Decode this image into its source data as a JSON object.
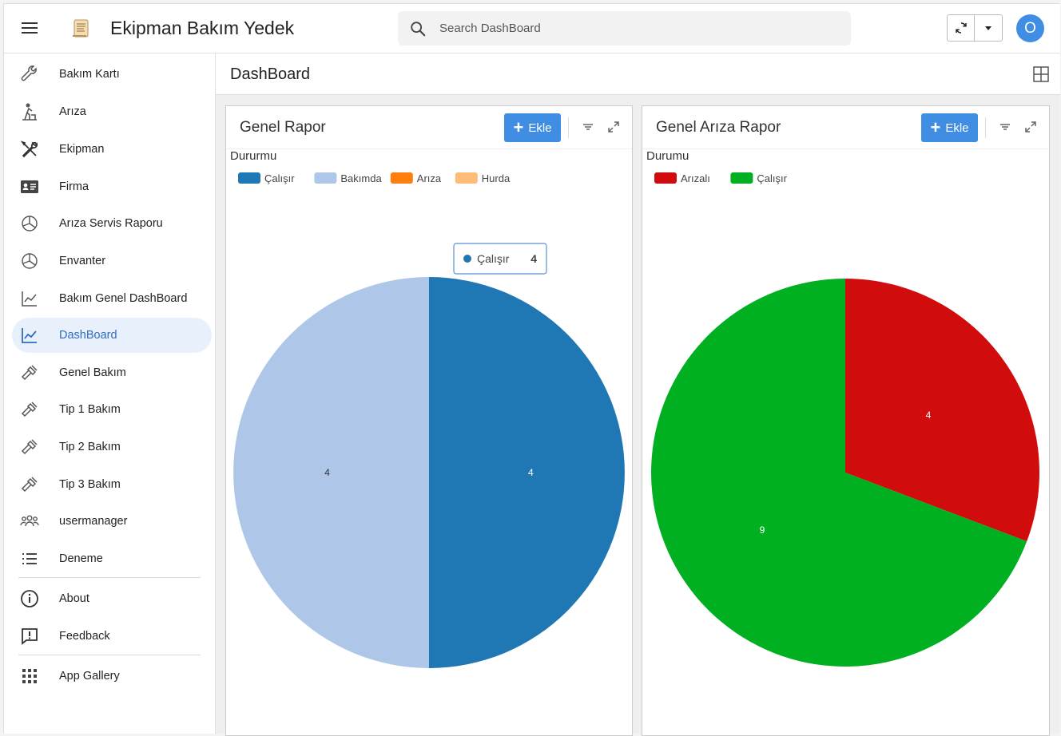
{
  "header": {
    "app_title": "Ekipman Bakım Yedek",
    "search_placeholder": "Search DashBoard",
    "avatar_initial": "O"
  },
  "sidebar": {
    "items": [
      {
        "label": "Bakım Kartı",
        "icon": "wrench-icon"
      },
      {
        "label": "Arıza",
        "icon": "worker-icon"
      },
      {
        "label": "Ekipman",
        "icon": "tools-icon"
      },
      {
        "label": "Firma",
        "icon": "id-card-icon"
      },
      {
        "label": "Arıza Servis Raporu",
        "icon": "pie-chart-icon"
      },
      {
        "label": "Envanter",
        "icon": "pie-chart-icon"
      },
      {
        "label": "Bakım Genel DashBoard",
        "icon": "line-chart-icon"
      },
      {
        "label": "DashBoard",
        "icon": "line-chart-icon",
        "active": true
      },
      {
        "label": "Genel Bakım",
        "icon": "hammer-icon"
      },
      {
        "label": "Tip 1 Bakım",
        "icon": "hammer-icon"
      },
      {
        "label": "Tip 2 Bakım",
        "icon": "hammer-icon"
      },
      {
        "label": "Tip 3 Bakım",
        "icon": "hammer-icon"
      },
      {
        "label": "usermanager",
        "icon": "users-icon"
      },
      {
        "label": "Deneme",
        "icon": "list-icon"
      }
    ],
    "secondary": [
      {
        "label": "About",
        "icon": "info-icon"
      },
      {
        "label": "Feedback",
        "icon": "feedback-icon"
      }
    ],
    "tertiary": [
      {
        "label": "App Gallery",
        "icon": "grid-icon"
      }
    ]
  },
  "main": {
    "title": "DashBoard",
    "add_label": "Ekle"
  },
  "chart_data": [
    {
      "type": "pie",
      "title": "Genel Rapor",
      "legend_title": "Dururmu",
      "categories": [
        "Çalışır",
        "Bakımda",
        "Arıza",
        "Hurda"
      ],
      "values": [
        4,
        4,
        0,
        0
      ],
      "colors": [
        "#1f77b4",
        "#aec7e8",
        "#ff7f0e",
        "#ffbb78"
      ],
      "tooltip": {
        "label": "Çalışır",
        "value": "4"
      }
    },
    {
      "type": "pie",
      "title": "Genel Arıza Rapor",
      "legend_title": "Durumu",
      "categories": [
        "Arızalı",
        "Çalışır"
      ],
      "values": [
        4,
        9
      ],
      "colors": [
        "#d00c0c",
        "#00b020"
      ]
    }
  ]
}
